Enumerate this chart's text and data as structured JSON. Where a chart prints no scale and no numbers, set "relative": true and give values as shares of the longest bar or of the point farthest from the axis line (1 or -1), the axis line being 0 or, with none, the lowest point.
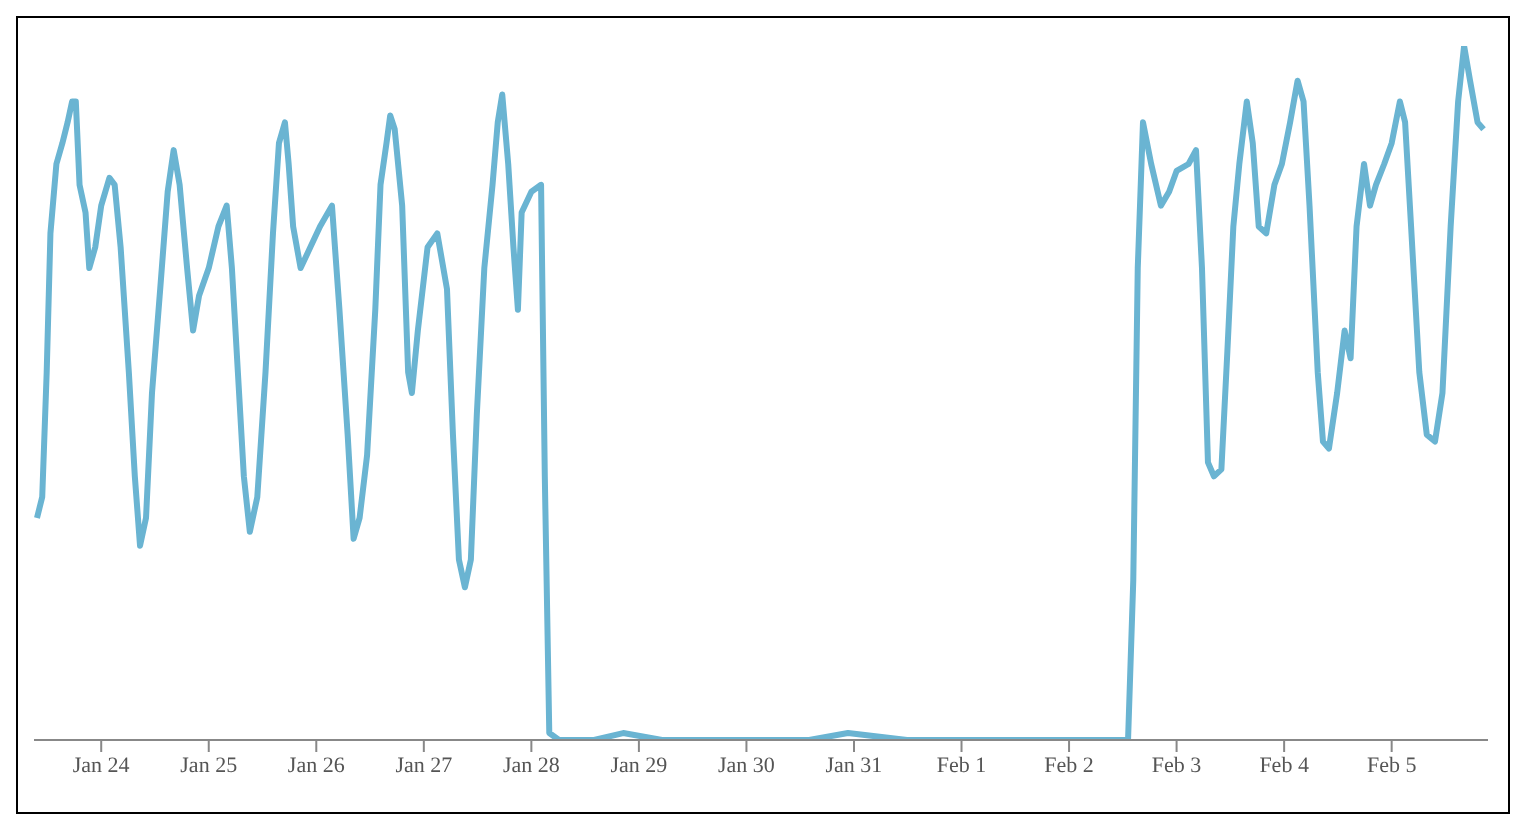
{
  "chart_data": {
    "type": "line",
    "relative": true,
    "color": "#6ab4d2",
    "xlim": [
      "--01-23T09:00",
      "--02-05T21:30"
    ],
    "xticks": [
      {
        "value": "--01-24",
        "label": "Jan 24"
      },
      {
        "value": "--01-25",
        "label": "Jan 25"
      },
      {
        "value": "--01-26",
        "label": "Jan 26"
      },
      {
        "value": "--01-27",
        "label": "Jan 27"
      },
      {
        "value": "--01-28",
        "label": "Jan 28"
      },
      {
        "value": "--01-29",
        "label": "Jan 29"
      },
      {
        "value": "--01-30",
        "label": "Jan 30"
      },
      {
        "value": "--01-31",
        "label": "Jan 31"
      },
      {
        "value": "--02-01",
        "label": "Feb 1"
      },
      {
        "value": "--02-02",
        "label": "Feb 2"
      },
      {
        "value": "--02-03",
        "label": "Feb 3"
      },
      {
        "value": "--02-04",
        "label": "Feb 4"
      },
      {
        "value": "--02-05",
        "label": "Feb 5"
      }
    ],
    "x": [
      "--01-23T09:40",
      "--01-23T10:50",
      "--01-23T11:50",
      "--01-23T12:40",
      "--01-23T14:00",
      "--01-23T15:20",
      "--01-23T16:30",
      "--01-23T17:30",
      "--01-23T18:20",
      "--01-23T19:10",
      "--01-23T20:30",
      "--01-23T21:20",
      "--01-23T22:40",
      "--01-24T00:00",
      "--01-24T01:50",
      "--01-24T03:00",
      "--01-24T04:20",
      "--01-24T06:10",
      "--01-24T07:30",
      "--01-24T08:40",
      "--01-24T10:00",
      "--01-24T11:20",
      "--01-24T13:10",
      "--01-24T14:50",
      "--01-24T16:10",
      "--01-24T17:30",
      "--01-24T19:10",
      "--01-24T20:30",
      "--01-24T21:50",
      "--01-25T00:00",
      "--01-25T02:10",
      "--01-25T04:00",
      "--01-25T05:10",
      "--01-25T06:30",
      "--01-25T07:50",
      "--01-25T09:10",
      "--01-25T10:50",
      "--01-25T12:40",
      "--01-25T14:20",
      "--01-25T15:40",
      "--01-25T17:00",
      "--01-25T17:50",
      "--01-25T18:50",
      "--01-25T20:30",
      "--01-25T22:40",
      "--01-26T00:50",
      "--01-26T03:30",
      "--01-26T05:10",
      "--01-26T07:00",
      "--01-26T08:20",
      "--01-26T09:40",
      "--01-26T11:20",
      "--01-26T13:10",
      "--01-26T14:20",
      "--01-26T15:40",
      "--01-26T16:30",
      "--01-26T17:30",
      "--01-26T19:10",
      "--01-26T20:30",
      "--01-26T21:20",
      "--01-26T22:40",
      "--01-27T00:50",
      "--01-27T03:00",
      "--01-27T05:10",
      "--01-27T06:30",
      "--01-27T07:50",
      "--01-27T09:10",
      "--01-27T10:30",
      "--01-27T11:50",
      "--01-27T13:30",
      "--01-27T15:20",
      "--01-27T16:30",
      "--01-27T17:30",
      "--01-27T18:50",
      "--01-27T20:00",
      "--01-27T21:00",
      "--01-27T21:50",
      "--01-28T00:00",
      "--01-28T02:10",
      "--01-28T03:00",
      "--01-28T04:00",
      "--01-28T06:10",
      "--01-28T14:00",
      "--01-28T20:30",
      "--01-29T05:10",
      "--01-29T11:50",
      "--01-30T00:50",
      "--01-30T14:00",
      "--01-30T22:40",
      "--01-31T11:50",
      "--02-01T05:10",
      "--02-01T18:20",
      "--02-02T13:10",
      "--02-02T14:20",
      "--02-02T15:20",
      "--02-02T16:30",
      "--02-02T18:20",
      "--02-02T20:30",
      "--02-02T22:20",
      "--02-03T00:00",
      "--02-03T02:40",
      "--02-03T04:20",
      "--02-03T05:40",
      "--02-03T07:00",
      "--02-03T08:20",
      "--02-03T10:00",
      "--02-03T11:20",
      "--02-03T12:40",
      "--02-03T14:00",
      "--02-03T15:40",
      "--02-03T17:00",
      "--02-03T18:20",
      "--02-03T20:00",
      "--02-03T21:50",
      "--02-03T23:30",
      "--02-04T01:20",
      "--02-04T03:00",
      "--02-04T04:20",
      "--02-04T05:40",
      "--02-04T07:30",
      "--02-04T08:40",
      "--02-04T10:00",
      "--02-04T11:50",
      "--02-04T13:30",
      "--02-04T14:50",
      "--02-04T16:10",
      "--02-04T17:50",
      "--02-04T19:10",
      "--02-04T20:30",
      "--02-04T22:20",
      "--02-05T00:00",
      "--02-05T01:50",
      "--02-05T03:00",
      "--02-05T04:20",
      "--02-05T06:10",
      "--02-05T07:50",
      "--02-05T09:40",
      "--02-05T11:20",
      "--02-05T13:10",
      "--02-05T14:50",
      "--02-05T16:10",
      "--02-05T17:30",
      "--02-05T19:10",
      "--02-05T20:30"
    ],
    "values": [
      0.32,
      0.35,
      0.53,
      0.73,
      0.83,
      0.86,
      0.89,
      0.92,
      0.92,
      0.8,
      0.76,
      0.68,
      0.71,
      0.77,
      0.81,
      0.8,
      0.71,
      0.53,
      0.38,
      0.28,
      0.32,
      0.5,
      0.65,
      0.79,
      0.85,
      0.8,
      0.68,
      0.59,
      0.64,
      0.68,
      0.74,
      0.77,
      0.68,
      0.53,
      0.38,
      0.3,
      0.35,
      0.53,
      0.73,
      0.86,
      0.89,
      0.83,
      0.74,
      0.68,
      0.71,
      0.74,
      0.77,
      0.62,
      0.44,
      0.29,
      0.32,
      0.41,
      0.62,
      0.8,
      0.86,
      0.9,
      0.88,
      0.77,
      0.53,
      0.5,
      0.59,
      0.71,
      0.73,
      0.65,
      0.44,
      0.26,
      0.22,
      0.26,
      0.47,
      0.68,
      0.8,
      0.89,
      0.93,
      0.83,
      0.71,
      0.62,
      0.76,
      0.79,
      0.8,
      0.38,
      0.01,
      0,
      0,
      0.01,
      0,
      0,
      0,
      0,
      0.01,
      0,
      0,
      0,
      0,
      0.23,
      0.68,
      0.89,
      0.83,
      0.77,
      0.79,
      0.82,
      0.83,
      0.85,
      0.68,
      0.4,
      0.38,
      0.39,
      0.56,
      0.74,
      0.83,
      0.92,
      0.86,
      0.74,
      0.73,
      0.8,
      0.83,
      0.89,
      0.95,
      0.92,
      0.77,
      0.53,
      0.43,
      0.42,
      0.5,
      0.59,
      0.55,
      0.74,
      0.83,
      0.77,
      0.8,
      0.83,
      0.86,
      0.92,
      0.89,
      0.74,
      0.53,
      0.44,
      0.43,
      0.5,
      0.74,
      0.92,
      1,
      0.95,
      0.89,
      0.88
    ]
  }
}
